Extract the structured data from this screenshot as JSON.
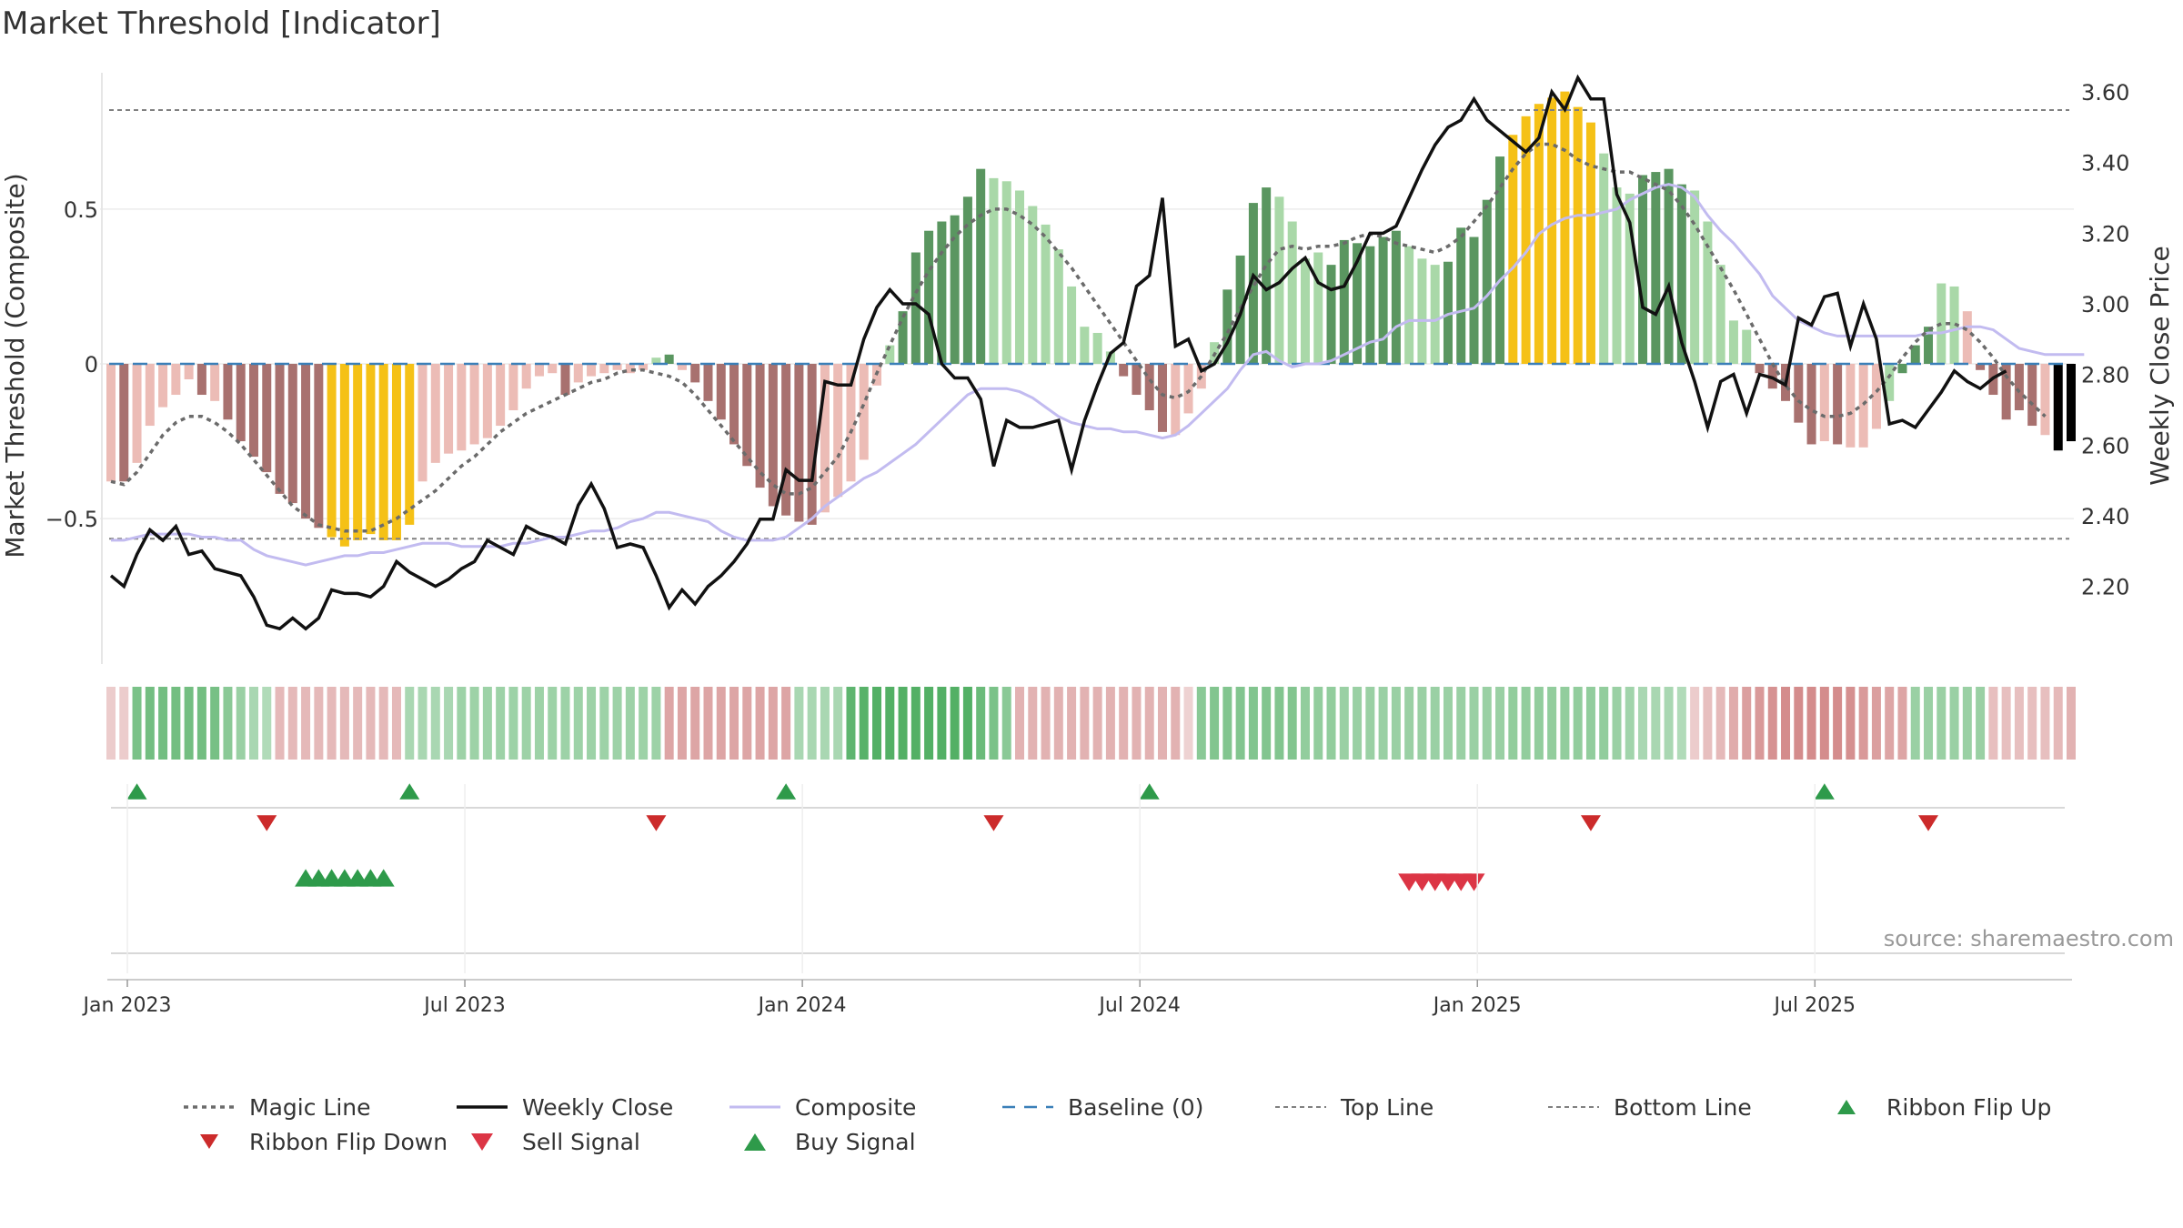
{
  "title": "Market Threshold [Indicator]",
  "source": "source: sharemaestro.com",
  "colors": {
    "green_dark": "#5a9660",
    "green_light": "#a9d8a8",
    "red_dark": "#a8716f",
    "red_light": "#ecbcb6",
    "yellow": "#f5c116",
    "close": "#111111",
    "composite": "#c2bbf0",
    "magic": "#6b6b6b",
    "baseline": "#3a7fb8",
    "thresholds": "#808080",
    "buy": "#2e9a4a",
    "sell": "#dc3545",
    "flip_down": "#cc2b2b"
  },
  "chart_data": {
    "type": "bar",
    "y_left_label": "Market Threshold (Composite)",
    "y_right_label": "Weekly Close Price",
    "y_left_ticks": [
      "0.5",
      "0",
      "−0.5"
    ],
    "y_right_ticks": [
      "3.60",
      "3.40",
      "3.20",
      "3.00",
      "2.80",
      "2.60",
      "2.40",
      "2.20"
    ],
    "x_ticks": [
      "Jan 2023",
      "Jul 2023",
      "Jan 2024",
      "Jul 2024",
      "Jan 2025",
      "Jul 2025"
    ],
    "left_ylim": [
      -0.97,
      0.97
    ],
    "right_ylim": [
      1.98,
      3.68
    ],
    "top_line": 0.82,
    "bottom_line": -0.565,
    "baseline": 0,
    "composite_bars": [
      -0.38,
      -0.38,
      -0.32,
      -0.2,
      -0.14,
      -0.1,
      -0.05,
      -0.1,
      -0.12,
      -0.18,
      -0.25,
      -0.3,
      -0.35,
      -0.42,
      -0.45,
      -0.5,
      -0.53,
      -0.56,
      -0.59,
      -0.57,
      -0.55,
      -0.57,
      -0.57,
      -0.52,
      -0.38,
      -0.32,
      -0.29,
      -0.28,
      -0.26,
      -0.24,
      -0.2,
      -0.15,
      -0.08,
      -0.04,
      -0.03,
      -0.1,
      -0.06,
      -0.04,
      -0.03,
      -0.02,
      -0.03,
      -0.02,
      0.02,
      0.03,
      -0.02,
      -0.06,
      -0.12,
      -0.18,
      -0.26,
      -0.33,
      -0.4,
      -0.46,
      -0.49,
      -0.51,
      -0.52,
      -0.48,
      -0.43,
      -0.38,
      -0.31,
      -0.07,
      0.06,
      0.17,
      0.36,
      0.43,
      0.46,
      0.48,
      0.54,
      0.63,
      0.6,
      0.59,
      0.56,
      0.51,
      0.45,
      0.37,
      0.25,
      0.12,
      0.1,
      0.04,
      -0.04,
      -0.1,
      -0.15,
      -0.22,
      -0.23,
      -0.16,
      -0.08,
      0.07,
      0.24,
      0.35,
      0.52,
      0.57,
      0.54,
      0.46,
      0.34,
      0.36,
      0.32,
      0.4,
      0.39,
      0.38,
      0.41,
      0.43,
      0.38,
      0.34,
      0.32,
      0.33,
      0.44,
      0.41,
      0.53,
      0.67,
      0.74,
      0.8,
      0.84,
      0.86,
      0.88,
      0.83,
      0.78,
      0.68,
      0.57,
      0.55,
      0.61,
      0.62,
      0.63,
      0.58,
      0.56,
      0.46,
      0.32,
      0.14,
      0.11,
      -0.03,
      -0.08,
      -0.12,
      -0.19,
      -0.26,
      -0.25,
      -0.26,
      -0.27,
      -0.27,
      -0.21,
      -0.12,
      -0.03,
      0.06,
      0.12,
      0.26,
      0.25,
      0.17,
      -0.02,
      -0.1,
      -0.18,
      -0.15,
      -0.2,
      -0.23,
      -0.28,
      -0.25
    ],
    "bar_styles": [
      "rl",
      "rd",
      "rl",
      "rl",
      "rl",
      "rl",
      "rl",
      "rd",
      "rl",
      "rd",
      "rd",
      "rd",
      "rd",
      "rd",
      "rd",
      "rd",
      "rd",
      "y",
      "y",
      "y",
      "y",
      "y",
      "y",
      "y",
      "rl",
      "rl",
      "rl",
      "rl",
      "rl",
      "rl",
      "rl",
      "rl",
      "rl",
      "rl",
      "rl",
      "rd",
      "rl",
      "rl",
      "rl",
      "rl",
      "rl",
      "rl",
      "gl",
      "gd",
      "rl",
      "rd",
      "rd",
      "rd",
      "rd",
      "rd",
      "rd",
      "rd",
      "rd",
      "rd",
      "rd",
      "rl",
      "rl",
      "rl",
      "rl",
      "rl",
      "gl",
      "gd",
      "gd",
      "gd",
      "gd",
      "gd",
      "gd",
      "gd",
      "gl",
      "gl",
      "gl",
      "gl",
      "gl",
      "gl",
      "gl",
      "gl",
      "gl",
      "gl",
      "rd",
      "rd",
      "rd",
      "rd",
      "rl",
      "rl",
      "rl",
      "gl",
      "gd",
      "gd",
      "gd",
      "gd",
      "gl",
      "gl",
      "gl",
      "gl",
      "gd",
      "gd",
      "gd",
      "gd",
      "gd",
      "gd",
      "gl",
      "gl",
      "gl",
      "gd",
      "gd",
      "gd",
      "gd",
      "gd",
      "y",
      "y",
      "y",
      "y",
      "y",
      "y",
      "y",
      "gl",
      "gl",
      "gl",
      "gd",
      "gd",
      "gd",
      "gd",
      "gl",
      "gl",
      "gl",
      "gl",
      "gl",
      "rd",
      "rd",
      "rd",
      "rd",
      "rd",
      "rl",
      "rd",
      "rl",
      "rl",
      "rl",
      "gl",
      "gd",
      "gd",
      "gd",
      "gl",
      "gl",
      "rl",
      "rd",
      "rd",
      "rd",
      "rd",
      "rd",
      "rl"
    ],
    "composite_line": [
      -0.57,
      -0.57,
      -0.56,
      -0.55,
      -0.55,
      -0.55,
      -0.55,
      -0.56,
      -0.56,
      -0.57,
      -0.57,
      -0.6,
      -0.62,
      -0.63,
      -0.64,
      -0.65,
      -0.64,
      -0.63,
      -0.62,
      -0.62,
      -0.61,
      -0.61,
      -0.6,
      -0.59,
      -0.58,
      -0.58,
      -0.58,
      -0.59,
      -0.59,
      -0.59,
      -0.59,
      -0.58,
      -0.58,
      -0.57,
      -0.56,
      -0.56,
      -0.55,
      -0.54,
      -0.54,
      -0.53,
      -0.51,
      -0.5,
      -0.48,
      -0.48,
      -0.49,
      -0.5,
      -0.51,
      -0.54,
      -0.56,
      -0.57,
      -0.57,
      -0.57,
      -0.56,
      -0.53,
      -0.5,
      -0.46,
      -0.43,
      -0.4,
      -0.37,
      -0.35,
      -0.32,
      -0.29,
      -0.26,
      -0.22,
      -0.18,
      -0.14,
      -0.1,
      -0.08,
      -0.08,
      -0.08,
      -0.09,
      -0.11,
      -0.14,
      -0.17,
      -0.19,
      -0.2,
      -0.21,
      -0.21,
      -0.22,
      -0.22,
      -0.23,
      -0.24,
      -0.23,
      -0.2,
      -0.16,
      -0.12,
      -0.08,
      -0.02,
      0.03,
      0.04,
      0.01,
      -0.01,
      0.0,
      0.0,
      0.01,
      0.03,
      0.05,
      0.07,
      0.08,
      0.12,
      0.14,
      0.14,
      0.14,
      0.16,
      0.17,
      0.18,
      0.22,
      0.27,
      0.31,
      0.36,
      0.42,
      0.45,
      0.47,
      0.48,
      0.48,
      0.49,
      0.5,
      0.53,
      0.55,
      0.57,
      0.58,
      0.57,
      0.54,
      0.48,
      0.43,
      0.39,
      0.34,
      0.29,
      0.22,
      0.18,
      0.14,
      0.12,
      0.1,
      0.09,
      0.09,
      0.09,
      0.09,
      0.09,
      0.09,
      0.09,
      0.1,
      0.1,
      0.11,
      0.12,
      0.12,
      0.11,
      0.08,
      0.05,
      0.04,
      0.03,
      0.03,
      0.03,
      0.03
    ],
    "magic_line": [
      -0.38,
      -0.39,
      -0.35,
      -0.29,
      -0.23,
      -0.19,
      -0.17,
      -0.17,
      -0.19,
      -0.22,
      -0.26,
      -0.31,
      -0.36,
      -0.41,
      -0.46,
      -0.49,
      -0.52,
      -0.53,
      -0.54,
      -0.54,
      -0.54,
      -0.52,
      -0.5,
      -0.47,
      -0.44,
      -0.41,
      -0.37,
      -0.33,
      -0.3,
      -0.26,
      -0.22,
      -0.19,
      -0.16,
      -0.14,
      -0.12,
      -0.1,
      -0.08,
      -0.06,
      -0.05,
      -0.03,
      -0.02,
      -0.02,
      -0.03,
      -0.04,
      -0.06,
      -0.1,
      -0.15,
      -0.2,
      -0.25,
      -0.3,
      -0.35,
      -0.39,
      -0.42,
      -0.42,
      -0.4,
      -0.35,
      -0.3,
      -0.22,
      -0.13,
      -0.03,
      0.06,
      0.15,
      0.23,
      0.3,
      0.36,
      0.41,
      0.45,
      0.48,
      0.5,
      0.5,
      0.48,
      0.45,
      0.41,
      0.36,
      0.31,
      0.25,
      0.19,
      0.13,
      0.07,
      0.01,
      -0.05,
      -0.1,
      -0.11,
      -0.09,
      -0.04,
      0.03,
      0.1,
      0.18,
      0.25,
      0.32,
      0.37,
      0.38,
      0.37,
      0.38,
      0.38,
      0.39,
      0.41,
      0.42,
      0.41,
      0.39,
      0.38,
      0.37,
      0.36,
      0.38,
      0.41,
      0.46,
      0.51,
      0.57,
      0.63,
      0.68,
      0.71,
      0.71,
      0.69,
      0.66,
      0.64,
      0.63,
      0.62,
      0.62,
      0.6,
      0.58,
      0.56,
      0.51,
      0.45,
      0.38,
      0.31,
      0.24,
      0.16,
      0.08,
      0.0,
      -0.07,
      -0.12,
      -0.15,
      -0.17,
      -0.17,
      -0.16,
      -0.13,
      -0.09,
      -0.04,
      0.02,
      0.07,
      0.11,
      0.13,
      0.13,
      0.11,
      0.07,
      0.02,
      -0.04,
      -0.09,
      -0.13,
      -0.17
    ],
    "weekly_close": [
      2.23,
      2.2,
      2.29,
      2.36,
      2.33,
      2.37,
      2.29,
      2.3,
      2.25,
      2.24,
      2.23,
      2.17,
      2.09,
      2.08,
      2.11,
      2.08,
      2.11,
      2.19,
      2.18,
      2.18,
      2.17,
      2.2,
      2.27,
      2.24,
      2.22,
      2.2,
      2.22,
      2.25,
      2.27,
      2.33,
      2.31,
      2.29,
      2.37,
      2.35,
      2.34,
      2.32,
      2.43,
      2.49,
      2.42,
      2.31,
      2.32,
      2.31,
      2.23,
      2.14,
      2.19,
      2.15,
      2.2,
      2.23,
      2.27,
      2.32,
      2.39,
      2.39,
      2.53,
      2.5,
      2.5,
      2.78,
      2.77,
      2.77,
      2.9,
      2.99,
      3.04,
      3.0,
      3.0,
      2.97,
      2.83,
      2.79,
      2.79,
      2.73,
      2.54,
      2.67,
      2.65,
      2.65,
      2.66,
      2.67,
      2.53,
      2.67,
      2.77,
      2.86,
      2.89,
      3.05,
      3.08,
      3.3,
      2.88,
      2.9,
      2.81,
      2.83,
      2.89,
      2.97,
      3.08,
      3.04,
      3.06,
      3.1,
      3.13,
      3.06,
      3.04,
      3.05,
      3.12,
      3.2,
      3.2,
      3.22,
      3.3,
      3.38,
      3.45,
      3.5,
      3.52,
      3.58,
      3.52,
      3.49,
      3.46,
      3.43,
      3.47,
      3.6,
      3.55,
      3.64,
      3.58,
      3.58,
      3.31,
      3.23,
      2.99,
      2.97,
      3.05,
      2.89,
      2.78,
      2.65,
      2.78,
      2.8,
      2.69,
      2.8,
      2.79,
      2.77,
      2.96,
      2.94,
      3.02,
      3.03,
      2.88,
      3.0,
      2.9,
      2.66,
      2.67,
      2.65,
      2.7,
      2.75,
      2.81,
      2.78,
      2.76,
      2.79,
      2.81
    ],
    "ribbon": [
      -0.15,
      -0.15,
      0.6,
      0.65,
      0.65,
      0.65,
      0.65,
      0.65,
      0.62,
      0.5,
      0.4,
      0.3,
      0.25,
      -0.3,
      -0.3,
      -0.3,
      -0.3,
      -0.3,
      -0.3,
      -0.3,
      -0.3,
      -0.3,
      -0.3,
      0.3,
      0.3,
      0.3,
      0.3,
      0.38,
      0.38,
      0.38,
      0.38,
      0.38,
      0.38,
      0.38,
      0.38,
      0.38,
      0.38,
      0.38,
      0.38,
      0.38,
      0.38,
      0.38,
      0.38,
      -0.45,
      -0.45,
      -0.45,
      -0.45,
      -0.45,
      -0.45,
      -0.45,
      -0.45,
      -0.45,
      -0.45,
      0.3,
      0.3,
      0.3,
      0.3,
      0.78,
      0.82,
      0.85,
      0.85,
      0.85,
      0.85,
      0.85,
      0.85,
      0.85,
      0.85,
      0.7,
      0.6,
      0.5,
      -0.35,
      -0.35,
      -0.35,
      -0.35,
      -0.35,
      -0.35,
      -0.35,
      -0.35,
      -0.35,
      -0.35,
      -0.35,
      -0.35,
      -0.35,
      -0.1,
      0.5,
      0.55,
      0.55,
      0.55,
      0.55,
      0.55,
      0.55,
      0.55,
      0.45,
      0.45,
      0.45,
      0.4,
      0.4,
      0.4,
      0.4,
      0.4,
      0.4,
      0.4,
      0.4,
      0.4,
      0.4,
      0.4,
      0.4,
      0.4,
      0.45,
      0.45,
      0.45,
      0.45,
      0.45,
      0.45,
      0.45,
      0.45,
      0.4,
      0.35,
      0.3,
      0.3,
      0.3,
      0.25,
      -0.15,
      -0.25,
      -0.3,
      -0.4,
      -0.5,
      -0.55,
      -0.6,
      -0.65,
      -0.65,
      -0.65,
      -0.65,
      -0.65,
      -0.62,
      -0.55,
      -0.5,
      -0.45,
      -0.45,
      0.4,
      0.4,
      0.4,
      0.4,
      0.4,
      0.4,
      -0.25,
      -0.25,
      -0.25,
      -0.25,
      -0.25,
      -0.3,
      -0.35
    ],
    "ribbon_flip_up": [
      2,
      23,
      52,
      80,
      132
    ],
    "ribbon_flip_down": [
      12,
      42,
      68,
      114,
      140
    ],
    "buy_signals": [
      15,
      16,
      17,
      18,
      19,
      20,
      21
    ],
    "sell_signals": [
      100,
      101,
      102,
      103,
      104,
      105
    ],
    "legend": [
      "Magic Line",
      "Weekly Close",
      "Composite",
      "Baseline (0)",
      "Top Line",
      "Bottom Line",
      "Ribbon Flip Up",
      "Ribbon Flip Down",
      "Sell Signal",
      "Buy Signal"
    ]
  }
}
